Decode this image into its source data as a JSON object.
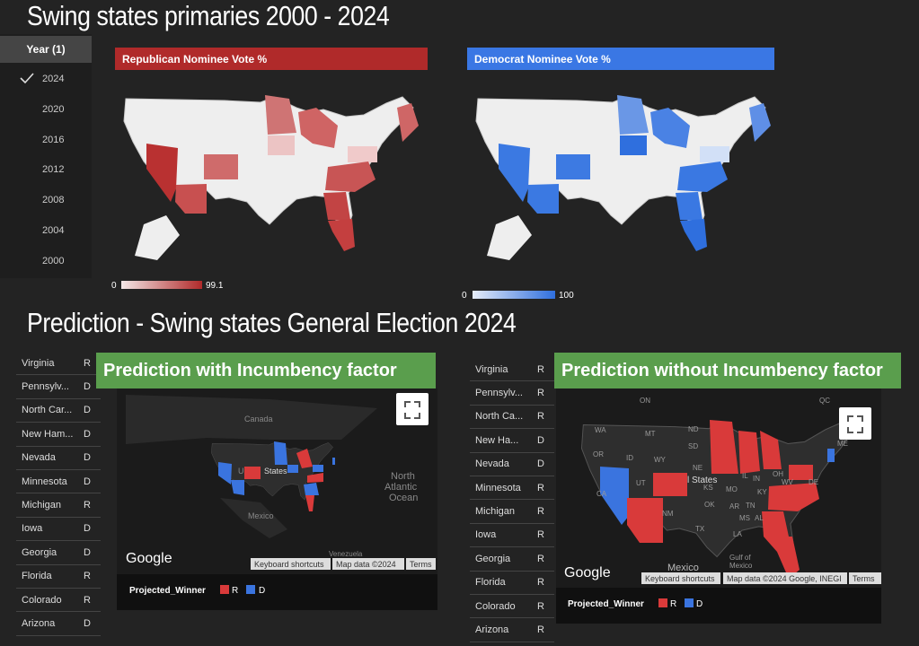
{
  "header": {
    "title": "Swing states primaries 2000 - 2024"
  },
  "year_filter": {
    "label": "Year (1)",
    "options": [
      "2024",
      "2020",
      "2016",
      "2012",
      "2008",
      "2004",
      "2000"
    ]
  },
  "republican_map": {
    "title": "Republican Nominee Vote %",
    "legend_min": "0",
    "legend_max": "99.1"
  },
  "democrat_map": {
    "title": "Democrat Nominee Vote %",
    "legend_min": "0",
    "legend_max": "100"
  },
  "prediction": {
    "title": "Prediction - Swing states General Election 2024"
  },
  "left_table": {
    "rows": [
      [
        "Virginia",
        "R"
      ],
      [
        "Pennsylv...",
        "D"
      ],
      [
        "North Car...",
        "D"
      ],
      [
        "New Ham...",
        "D"
      ],
      [
        "Nevada",
        "D"
      ],
      [
        "Minnesota",
        "D"
      ],
      [
        "Michigan",
        "R"
      ],
      [
        "Iowa",
        "D"
      ],
      [
        "Georgia",
        "D"
      ],
      [
        "Florida",
        "R"
      ],
      [
        "Colorado",
        "R"
      ],
      [
        "Arizona",
        "D"
      ]
    ]
  },
  "left_map": {
    "title": "Prediction with Incumbency factor",
    "labels": [
      "Canada",
      "U",
      "States",
      "Mexico",
      "North",
      "Atlantic",
      "Ocean",
      "Venezuela"
    ],
    "logo": "Google",
    "buttons": [
      "Keyboard shortcuts",
      "Map data ©2024",
      "Terms"
    ],
    "legend": {
      "title": "Projected_Winner",
      "items": [
        "R",
        "D"
      ]
    }
  },
  "right_table": {
    "rows": [
      [
        "Virginia",
        "R"
      ],
      [
        "Pennsylv...",
        "R"
      ],
      [
        "North Ca...",
        "R"
      ],
      [
        "New Ha...",
        "D"
      ],
      [
        "Nevada",
        "D"
      ],
      [
        "Minnesota",
        "R"
      ],
      [
        "Michigan",
        "R"
      ],
      [
        "Iowa",
        "R"
      ],
      [
        "Georgia",
        "R"
      ],
      [
        "Florida",
        "R"
      ],
      [
        "Colorado",
        "R"
      ],
      [
        "Arizona",
        "R"
      ]
    ]
  },
  "right_map": {
    "title": "Prediction without Incumbency factor",
    "labels": [
      "ON",
      "QC",
      "WA",
      "MT",
      "ND",
      "OR",
      "ID",
      "WY",
      "SD",
      "NE",
      "CA",
      "UT",
      "l States",
      "NM",
      "TX",
      "OK",
      "KS",
      "MO",
      "IL",
      "IN",
      "OH",
      "KY",
      "TN",
      "AR",
      "MS",
      "AL",
      "LA",
      "WV",
      "DE",
      "ME",
      "Mexico",
      "Gulf of",
      "Mexico"
    ],
    "logo": "Google",
    "buttons": [
      "Keyboard shortcuts",
      "Map data ©2024 Google, INEGI",
      "Terms"
    ],
    "legend": {
      "title": "Projected_Winner",
      "items": [
        "R",
        "D"
      ]
    }
  }
}
